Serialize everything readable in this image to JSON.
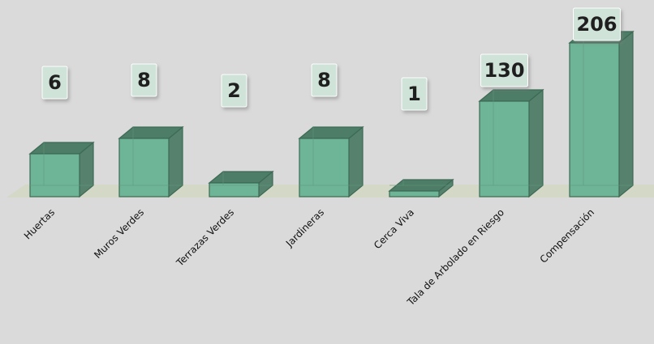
{
  "chart_data": {
    "type": "bar",
    "categories": [
      "Huertas",
      "Muros Verdes",
      "Terrazas Verdes",
      "Jardineras",
      "Cerca Viva",
      "Tala de Arbolado en Riesgo",
      "Compensación"
    ],
    "values": [
      6,
      8,
      2,
      8,
      1,
      130,
      206
    ],
    "value_labels": [
      "6",
      "8",
      "2",
      "8",
      "1",
      "130",
      "206"
    ],
    "title": "",
    "xlabel": "",
    "ylabel": "",
    "legend": "none",
    "grid": false,
    "style": "3d-column",
    "colors": {
      "bar_front": "#6db596",
      "bar_top": "#4d7d66",
      "bar_side": "#56826d",
      "floor": "#d4d8c6",
      "label_box": "#cfe3d9",
      "background": "#dadada"
    }
  }
}
